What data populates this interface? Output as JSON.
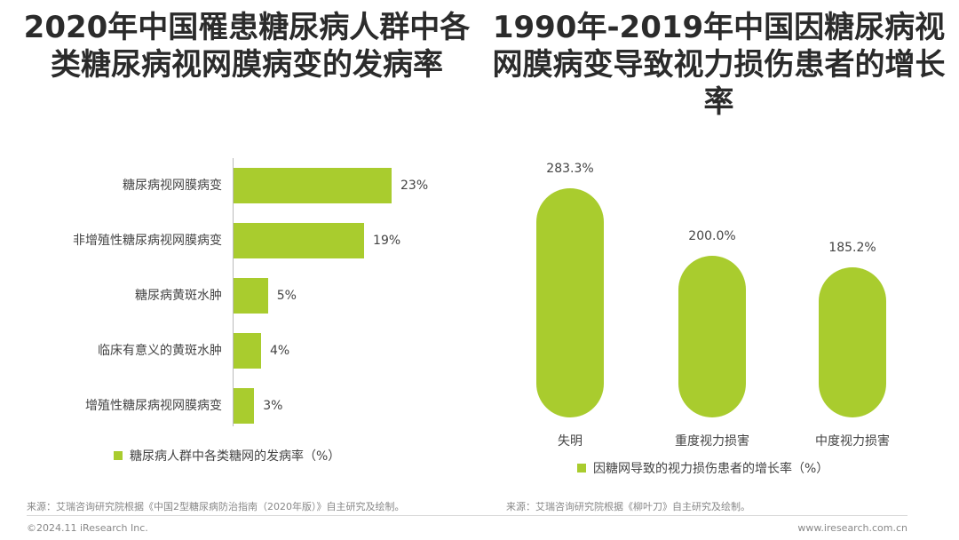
{
  "titles": {
    "left": "2020年中国罹患糖尿病人群中各类糖尿病视网膜病变的发病率",
    "right": "1990年-2019年中国因糖尿病视网膜病变导致视力损伤患者的增长率"
  },
  "colors": {
    "accent": "#a9cc2e"
  },
  "chart_data": [
    {
      "type": "bar",
      "orientation": "horizontal",
      "categories": [
        "糖尿病视网膜病变",
        "非增殖性糖尿病视网膜病变",
        "糖尿病黄斑水肿",
        "临床有意义的黄斑水肿",
        "增殖性糖尿病视网膜病变"
      ],
      "values": [
        23,
        19,
        5,
        4,
        3
      ],
      "value_labels": [
        "23%",
        "19%",
        "5%",
        "4%",
        "3%"
      ],
      "legend": "糖尿病人群中各类糖网的发病率（%）",
      "legend_position": "bottom",
      "grid": false
    },
    {
      "type": "bar",
      "orientation": "vertical",
      "categories": [
        "失明",
        "重度视力损害",
        "中度视力损害"
      ],
      "values": [
        283.3,
        200.0,
        185.2
      ],
      "value_labels": [
        "283.3%",
        "200.0%",
        "185.2%"
      ],
      "legend": "因糖网导致的视力损伤患者的增长率（%）",
      "legend_position": "bottom",
      "grid": false
    }
  ],
  "sources": {
    "left": "来源：艾瑞咨询研究院根据《中国2型糖尿病防治指南（2020年版）》自主研究及绘制。",
    "right": "来源：艾瑞咨询研究院根据《柳叶刀》自主研究及绘制。"
  },
  "footer": {
    "copyright": "©2024.11 iResearch Inc.",
    "website": "www.iresearch.com.cn"
  }
}
